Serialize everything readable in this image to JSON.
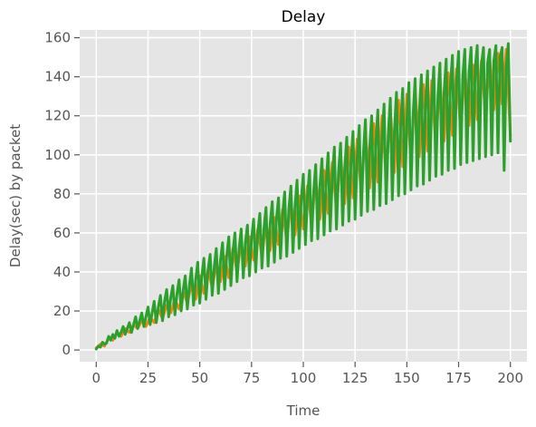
{
  "chart_data": {
    "type": "line",
    "title": "Delay",
    "xlabel": "Time",
    "ylabel": "Delay(sec) by packet",
    "xlim": [
      -8,
      208
    ],
    "ylim": [
      -6,
      164
    ],
    "xticks": [
      0,
      25,
      50,
      75,
      100,
      125,
      150,
      175,
      200
    ],
    "yticks": [
      0,
      20,
      40,
      60,
      80,
      100,
      120,
      140,
      160
    ],
    "grid": true,
    "background": "#e5e5e5",
    "grid_color": "#ffffff",
    "series": [
      {
        "color": "#ff7f0e",
        "x": [
          0,
          2,
          4,
          6,
          8,
          10,
          12,
          14,
          16,
          18,
          20,
          22,
          24,
          26,
          28,
          30,
          32,
          34,
          36,
          38,
          40,
          42,
          44,
          46,
          48,
          50,
          52,
          54,
          56,
          58,
          60,
          62,
          64,
          66,
          68,
          70,
          72,
          74,
          76,
          78,
          80,
          82,
          84,
          86,
          88,
          90,
          92,
          94,
          96,
          98,
          100,
          102,
          104,
          106,
          108,
          110,
          112,
          114,
          116,
          118,
          120,
          122,
          124,
          126,
          128,
          130,
          132,
          134,
          136,
          138,
          140,
          142,
          144,
          146,
          148,
          150,
          152,
          154,
          156,
          158,
          160,
          162,
          164,
          166,
          168,
          170,
          172,
          174,
          176,
          178,
          180,
          182,
          184,
          186,
          188,
          190,
          192,
          194,
          196,
          198,
          200
        ],
        "y": [
          1,
          3,
          2,
          6,
          5,
          9,
          7,
          11,
          9,
          13,
          11,
          15,
          12,
          17,
          14,
          21,
          16,
          23,
          19,
          26,
          21,
          30,
          24,
          34,
          26,
          38,
          29,
          41,
          32,
          44,
          35,
          48,
          37,
          52,
          40,
          55,
          43,
          58,
          46,
          62,
          48,
          65,
          51,
          68,
          54,
          72,
          56,
          76,
          59,
          79,
          62,
          84,
          64,
          88,
          67,
          92,
          70,
          96,
          72,
          100,
          75,
          104,
          78,
          108,
          80,
          112,
          83,
          116,
          86,
          120,
          88,
          124,
          91,
          128,
          94,
          131,
          96,
          134,
          99,
          136,
          102,
          138,
          104,
          140,
          107,
          142,
          110,
          144,
          112,
          145,
          115,
          146,
          118,
          148,
          120,
          150,
          123,
          152,
          126,
          154,
          110
        ]
      },
      {
        "color": "#2ca02c",
        "x": [
          0,
          1,
          2,
          3,
          4,
          5,
          6,
          7,
          8,
          9,
          10,
          11,
          12,
          13,
          14,
          15,
          16,
          17,
          18,
          19,
          20,
          21,
          22,
          23,
          24,
          25,
          26,
          27,
          28,
          29,
          30,
          31,
          32,
          33,
          34,
          35,
          36,
          37,
          38,
          39,
          40,
          41,
          42,
          43,
          44,
          45,
          46,
          47,
          48,
          49,
          50,
          51,
          52,
          53,
          54,
          55,
          56,
          57,
          58,
          59,
          60,
          61,
          62,
          63,
          64,
          65,
          66,
          67,
          68,
          69,
          70,
          71,
          72,
          73,
          74,
          75,
          76,
          77,
          78,
          79,
          80,
          81,
          82,
          83,
          84,
          85,
          86,
          87,
          88,
          89,
          90,
          91,
          92,
          93,
          94,
          95,
          96,
          97,
          98,
          99,
          100,
          101,
          102,
          103,
          104,
          105,
          106,
          107,
          108,
          109,
          110,
          111,
          112,
          113,
          114,
          115,
          116,
          117,
          118,
          119,
          120,
          121,
          122,
          123,
          124,
          125,
          126,
          127,
          128,
          129,
          130,
          131,
          132,
          133,
          134,
          135,
          136,
          137,
          138,
          139,
          140,
          141,
          142,
          143,
          144,
          145,
          146,
          147,
          148,
          149,
          150,
          151,
          152,
          153,
          154,
          155,
          156,
          157,
          158,
          159,
          160,
          161,
          162,
          163,
          164,
          165,
          166,
          167,
          168,
          169,
          170,
          171,
          172,
          173,
          174,
          175,
          176,
          177,
          178,
          179,
          180,
          181,
          182,
          183,
          184,
          185,
          186,
          187,
          188,
          189,
          190,
          191,
          192,
          193,
          194,
          195,
          196,
          197,
          198,
          199,
          200
        ],
        "y": [
          0.5,
          2,
          1.5,
          4,
          3,
          3.5,
          7,
          5,
          8,
          6,
          10,
          7,
          9,
          12,
          8,
          11,
          14,
          9,
          13,
          17,
          11,
          15,
          19,
          12,
          17,
          22,
          13,
          19,
          25,
          14,
          22,
          28,
          15,
          25,
          31,
          17,
          27,
          33,
          18,
          29,
          36,
          20,
          31,
          38,
          21,
          33,
          42,
          23,
          36,
          45,
          24,
          38,
          47,
          26,
          41,
          49,
          28,
          43,
          52,
          29,
          46,
          55,
          31,
          48,
          58,
          33,
          50,
          60,
          35,
          52,
          62,
          37,
          55,
          64,
          38,
          57,
          67,
          40,
          60,
          70,
          42,
          62,
          73,
          43,
          65,
          76,
          45,
          67,
          78,
          47,
          69,
          81,
          48,
          72,
          84,
          50,
          74,
          87,
          52,
          77,
          90,
          54,
          79,
          92,
          56,
          81,
          95,
          57,
          84,
          98,
          59,
          86,
          101,
          61,
          88,
          104,
          62,
          91,
          106,
          64,
          93,
          109,
          66,
          96,
          112,
          67,
          98,
          115,
          69,
          100,
          118,
          71,
          103,
          120,
          72,
          105,
          123,
          74,
          108,
          126,
          75,
          110,
          129,
          77,
          112,
          132,
          79,
          115,
          134,
          80,
          117,
          137,
          82,
          120,
          139,
          84,
          122,
          141,
          85,
          125,
          143,
          87,
          127,
          145,
          89,
          130,
          147,
          90,
          132,
          149,
          92,
          135,
          151,
          93,
          137,
          153,
          95,
          140,
          154,
          96,
          142,
          155,
          97,
          144,
          156,
          98,
          146,
          155,
          99,
          147,
          154,
          100,
          148,
          156,
          101,
          150,
          155,
          92,
          145,
          157,
          107
        ]
      }
    ]
  }
}
